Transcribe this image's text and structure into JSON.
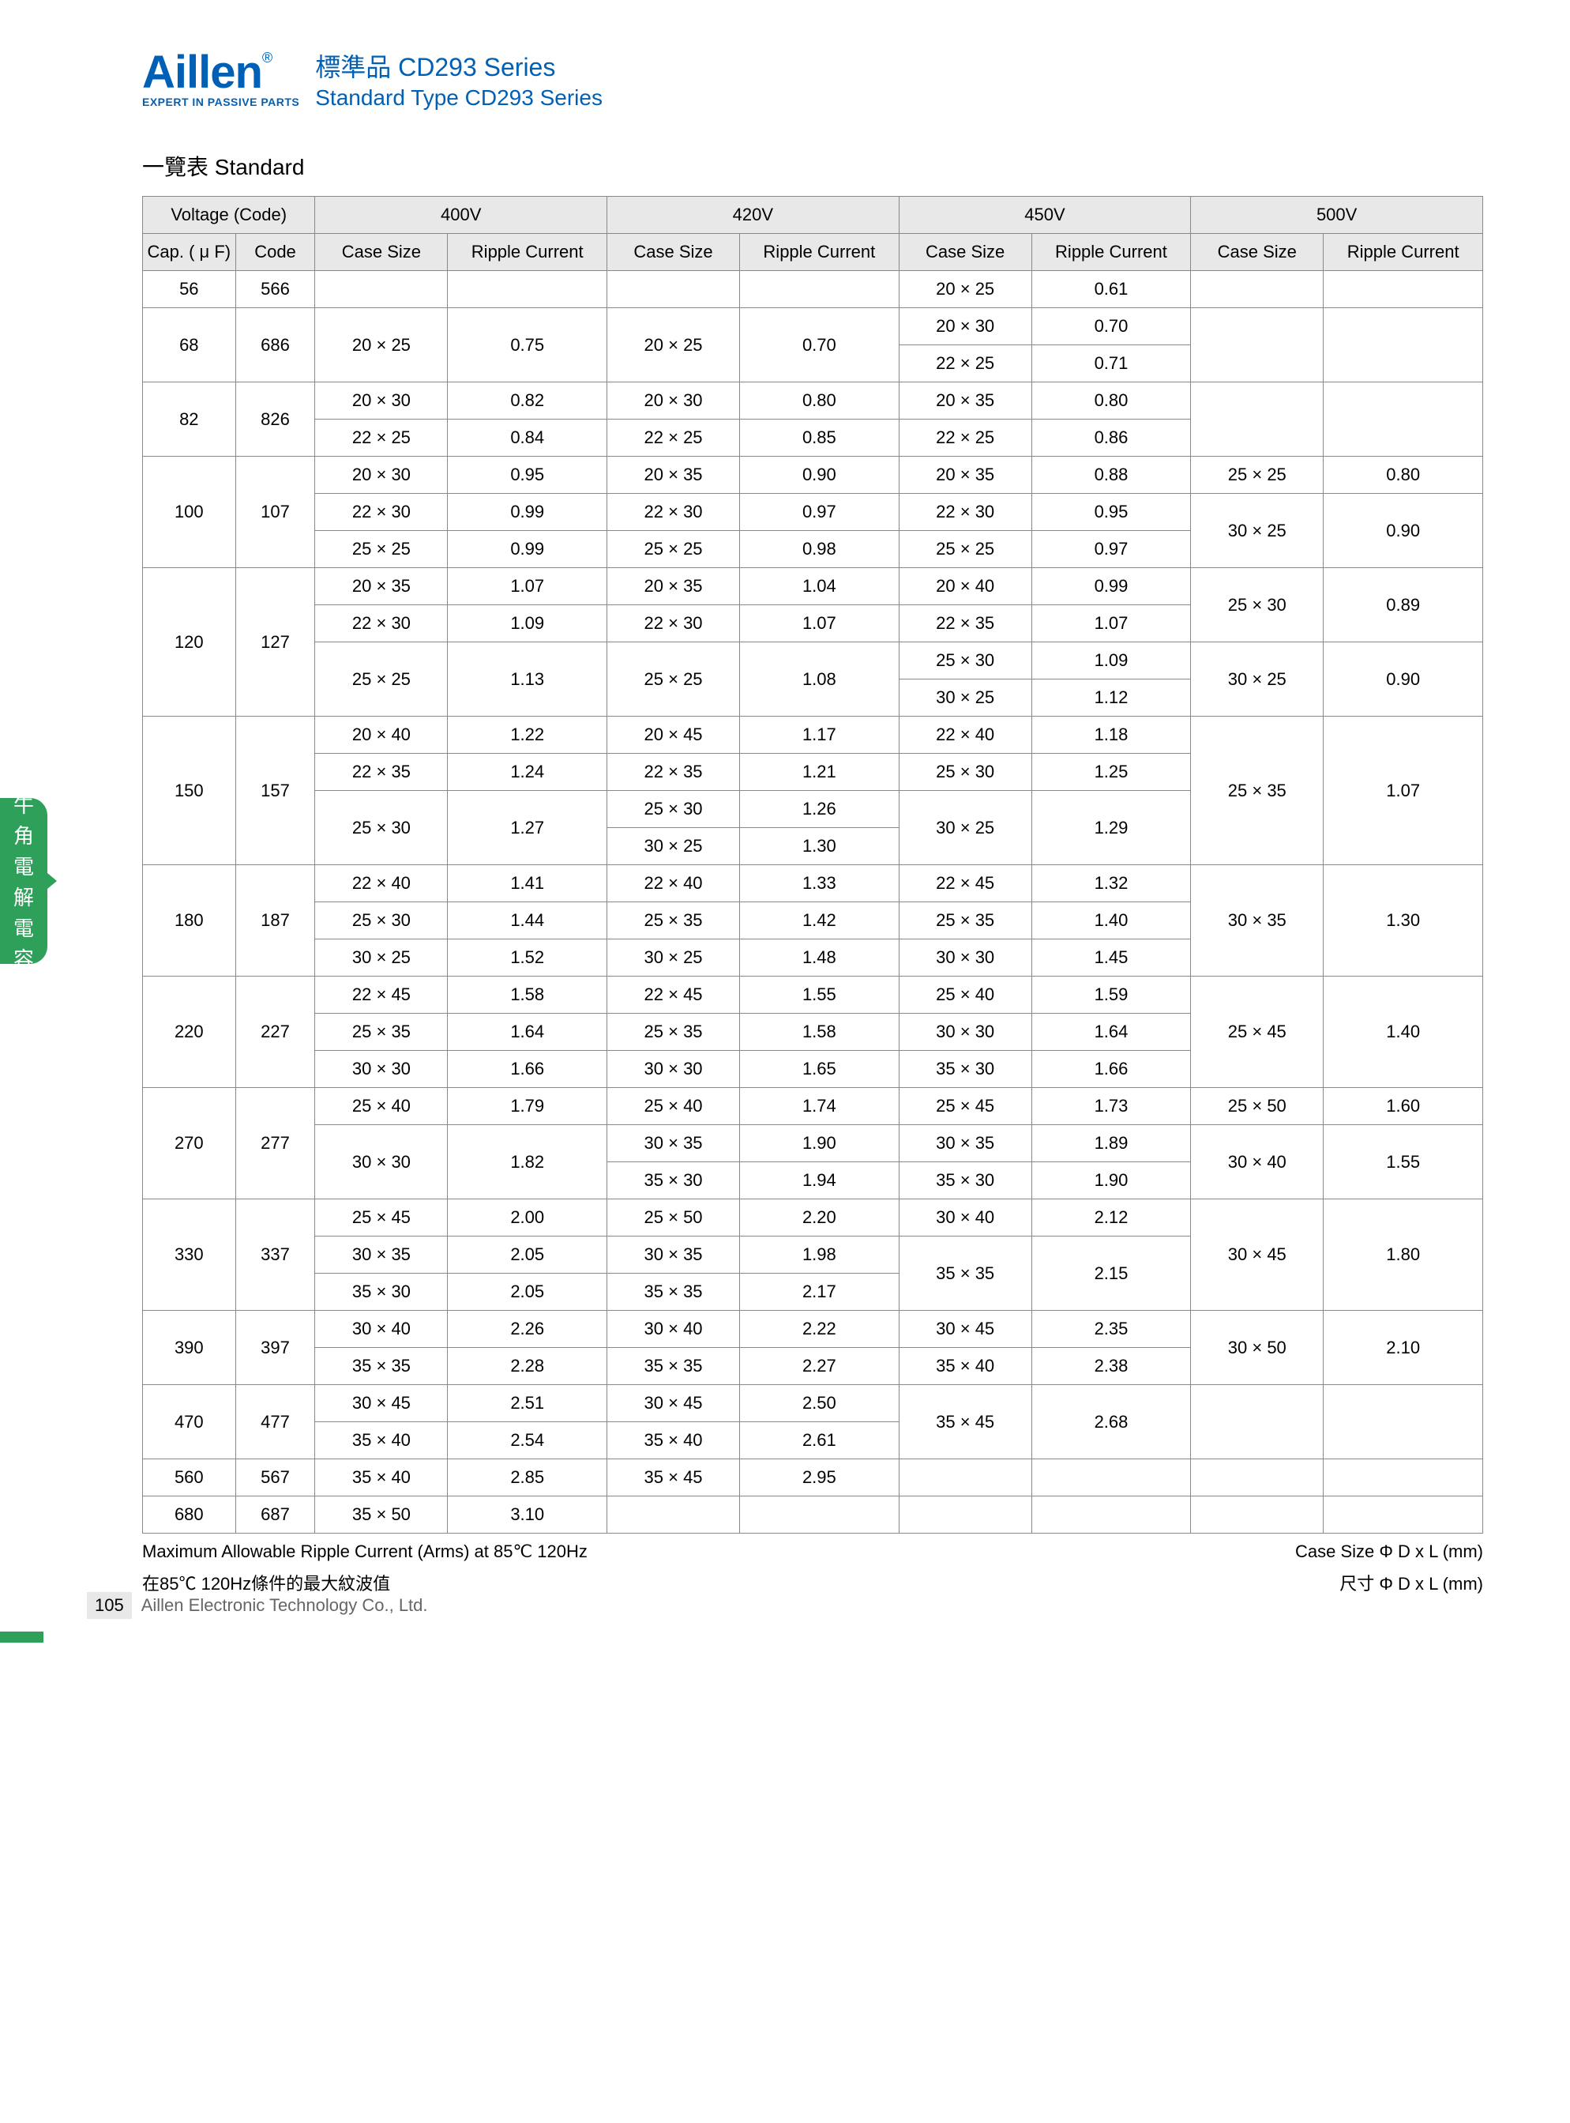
{
  "logo": {
    "name": "Aillen",
    "reg": "®",
    "sub": "EXPERT IN PASSIVE PARTS"
  },
  "series": {
    "cn": "標準品 CD293 Series",
    "en": "Standard Type CD293 Series"
  },
  "section": "一覽表  Standard",
  "side_tab": [
    "牛",
    "角",
    "電",
    "解",
    "電",
    "容"
  ],
  "headers": {
    "volt_code": "Voltage (Code)",
    "cap": "Cap. ( μ F)",
    "code": "Code",
    "case": "Case Size",
    "ripple": "Ripple Current",
    "v400": "400V",
    "v420": "420V",
    "v450": "450V",
    "v500": "500V"
  },
  "footnotes": {
    "left1": "Maximum Allowable Ripple Current (Arms) at 85℃ 120Hz",
    "left2": "在85℃ 120Hz條件的最大紋波值",
    "right1": "Case Size Φ D x L (mm)",
    "right2": "尺寸 Φ D x L (mm)"
  },
  "page_num": "105",
  "company": "Aillen Electronic Technology Co., Ltd.",
  "row56": {
    "cap": "56",
    "code": "566",
    "c450": "20 × 25",
    "r450": "0.61"
  },
  "row68": {
    "cap": "68",
    "code": "686",
    "c400": "20 × 25",
    "r400": "0.75",
    "c420": "20 × 25",
    "r420": "0.70",
    "c450a": "20 × 30",
    "r450a": "0.70",
    "c450b": "22 × 25",
    "r450b": "0.71"
  },
  "row82": {
    "cap": "82",
    "code": "826",
    "c400a": "20 × 30",
    "r400a": "0.82",
    "c400b": "22 × 25",
    "r400b": "0.84",
    "c420a": "20 × 30",
    "r420a": "0.80",
    "c420b": "22 × 25",
    "r420b": "0.85",
    "c450a": "20 × 35",
    "r450a": "0.80",
    "c450b": "22 × 25",
    "r450b": "0.86"
  },
  "row100": {
    "cap": "100",
    "code": "107",
    "c400a": "20 × 30",
    "r400a": "0.95",
    "c400b": "22 × 30",
    "r400b": "0.99",
    "c400c": "25 × 25",
    "r400c": "0.99",
    "c420a": "20 × 35",
    "r420a": "0.90",
    "c420b": "22 × 30",
    "r420b": "0.97",
    "c420c": "25 × 25",
    "r420c": "0.98",
    "c450a": "20 × 35",
    "r450a": "0.88",
    "c450b": "22 × 30",
    "r450b": "0.95",
    "c450c": "25 × 25",
    "r450c": "0.97",
    "c500a": "25 × 25",
    "r500a": "0.80",
    "c500b": "30 × 25",
    "r500b": "0.90"
  },
  "row120": {
    "cap": "120",
    "code": "127",
    "c400a": "20 × 35",
    "r400a": "1.07",
    "c400b": "22 × 30",
    "r400b": "1.09",
    "c400c": "25 × 25",
    "r400c": "1.13",
    "c420a": "20 × 35",
    "r420a": "1.04",
    "c420b": "22 × 30",
    "r420b": "1.07",
    "c420c": "25 × 25",
    "r420c": "1.08",
    "c450a": "20 × 40",
    "r450a": "0.99",
    "c450b": "22 × 35",
    "r450b": "1.07",
    "c450c": "25 × 30",
    "r450c": "1.09",
    "c450d": "30 × 25",
    "r450d": "1.12",
    "c500a": "25 × 30",
    "r500a": "0.89",
    "c500b": "30 × 25",
    "r500b": "0.90"
  },
  "row150": {
    "cap": "150",
    "code": "157",
    "c400a": "20 × 40",
    "r400a": "1.22",
    "c400b": "22 × 35",
    "r400b": "1.24",
    "c400c": "25 × 30",
    "r400c": "1.27",
    "c420a": "20 × 45",
    "r420a": "1.17",
    "c420b": "22 × 35",
    "r420b": "1.21",
    "c420c": "25 × 30",
    "r420c": "1.26",
    "c420d": "30 × 25",
    "r420d": "1.30",
    "c450a": "22 × 40",
    "r450a": "1.18",
    "c450b": "25 × 30",
    "r450b": "1.25",
    "c450c": "30 × 25",
    "r450c": "1.29",
    "c500": "25 × 35",
    "r500": "1.07"
  },
  "row180": {
    "cap": "180",
    "code": "187",
    "c400a": "22 × 40",
    "r400a": "1.41",
    "c400b": "25 × 30",
    "r400b": "1.44",
    "c400c": "30 × 25",
    "r400c": "1.52",
    "c420a": "22 × 40",
    "r420a": "1.33",
    "c420b": "25 × 35",
    "r420b": "1.42",
    "c420c": "30 × 25",
    "r420c": "1.48",
    "c450a": "22 × 45",
    "r450a": "1.32",
    "c450b": "25 × 35",
    "r450b": "1.40",
    "c450c": "30 × 30",
    "r450c": "1.45",
    "c500": "30 × 35",
    "r500": "1.30"
  },
  "row220": {
    "cap": "220",
    "code": "227",
    "c400a": "22 × 45",
    "r400a": "1.58",
    "c400b": "25 × 35",
    "r400b": "1.64",
    "c400c": "30 × 30",
    "r400c": "1.66",
    "c420a": "22 × 45",
    "r420a": "1.55",
    "c420b": "25 × 35",
    "r420b": "1.58",
    "c420c": "30 × 30",
    "r420c": "1.65",
    "c450a": "25 × 40",
    "r450a": "1.59",
    "c450b": "30 × 30",
    "r450b": "1.64",
    "c450c": "35 × 30",
    "r450c": "1.66",
    "c500": "25 × 45",
    "r500": "1.40"
  },
  "row270": {
    "cap": "270",
    "code": "277",
    "c400a": "25 × 40",
    "r400a": "1.79",
    "c400b": "30 × 30",
    "r400b": "1.82",
    "c420a": "25 × 40",
    "r420a": "1.74",
    "c420b": "30 × 35",
    "r420b": "1.90",
    "c420c": "35 × 30",
    "r420c": "1.94",
    "c450a": "25 × 45",
    "r450a": "1.73",
    "c450b": "30 × 35",
    "r450b": "1.89",
    "c450c": "35 × 30",
    "r450c": "1.90",
    "c500a": "25 × 50",
    "r500a": "1.60",
    "c500b": "30 × 40",
    "r500b": "1.55"
  },
  "row330": {
    "cap": "330",
    "code": "337",
    "c400a": "25 × 45",
    "r400a": "2.00",
    "c400b": "30 × 35",
    "r400b": "2.05",
    "c400c": "35 × 30",
    "r400c": "2.05",
    "c420a": "25 × 50",
    "r420a": "2.20",
    "c420b": "30 × 35",
    "r420b": "1.98",
    "c420c": "35 × 35",
    "r420c": "2.17",
    "c450a": "30 × 40",
    "r450a": "2.12",
    "c450b": "35 × 35",
    "r450b": "2.15",
    "c500": "30 × 45",
    "r500": "1.80"
  },
  "row390": {
    "cap": "390",
    "code": "397",
    "c400a": "30 × 40",
    "r400a": "2.26",
    "c400b": "35 × 35",
    "r400b": "2.28",
    "c420a": "30 × 40",
    "r420a": "2.22",
    "c420b": "35 × 35",
    "r420b": "2.27",
    "c450a": "30 × 45",
    "r450a": "2.35",
    "c450b": "35 × 40",
    "r450b": "2.38",
    "c500": "30 × 50",
    "r500": "2.10"
  },
  "row470": {
    "cap": "470",
    "code": "477",
    "c400a": "30 × 45",
    "r400a": "2.51",
    "c400b": "35 × 40",
    "r400b": "2.54",
    "c420a": "30 × 45",
    "r420a": "2.50",
    "c420b": "35 × 40",
    "r420b": "2.61",
    "c450": "35 × 45",
    "r450": "2.68"
  },
  "row560": {
    "cap": "560",
    "code": "567",
    "c400": "35 × 40",
    "r400": "2.85",
    "c420": "35 × 45",
    "r420": "2.95"
  },
  "row680": {
    "cap": "680",
    "code": "687",
    "c400": "35 × 50",
    "r400": "3.10"
  }
}
